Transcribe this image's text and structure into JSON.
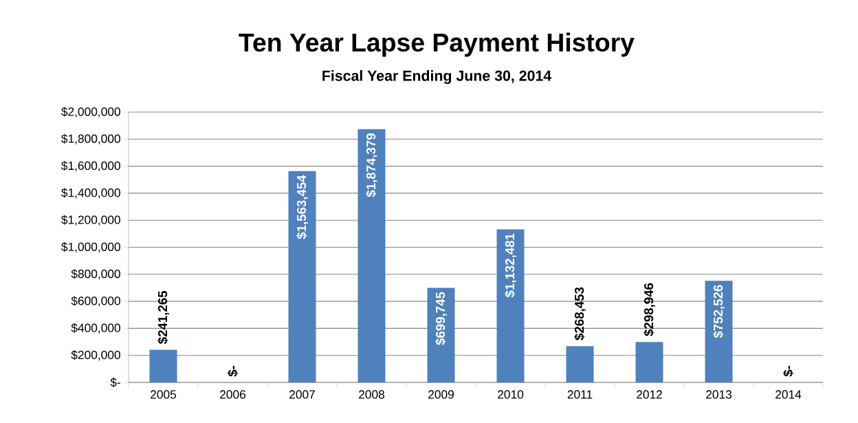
{
  "chart_data": {
    "type": "bar",
    "title": "Ten Year Lapse Payment History",
    "subtitle": "Fiscal Year Ending June 30, 2014",
    "categories": [
      "2005",
      "2006",
      "2007",
      "2008",
      "2009",
      "2010",
      "2011",
      "2012",
      "2013",
      "2014"
    ],
    "values": [
      241265,
      0,
      1563454,
      1874379,
      699745,
      1132481,
      268453,
      298946,
      752526,
      0
    ],
    "value_labels": [
      "$241,265",
      "$-",
      "$1,563,454",
      "$1,874,379",
      "$699,745",
      "$1,132,481",
      "$268,453",
      "$298,946",
      "$752,526",
      "$-"
    ],
    "color": "#4f81bd",
    "ylim": [
      0,
      2000000
    ],
    "yticks": [
      {
        "value": 0,
        "label": "$-"
      },
      {
        "value": 200000,
        "label": "$200,000"
      },
      {
        "value": 400000,
        "label": "$400,000"
      },
      {
        "value": 600000,
        "label": "$600,000"
      },
      {
        "value": 800000,
        "label": "$800,000"
      },
      {
        "value": 1000000,
        "label": "$1,000,000"
      },
      {
        "value": 1200000,
        "label": "$1,200,000"
      },
      {
        "value": 1400000,
        "label": "$1,400,000"
      },
      {
        "value": 1600000,
        "label": "$1,600,000"
      },
      {
        "value": 1800000,
        "label": "$1,800,000"
      },
      {
        "value": 2000000,
        "label": "$2,000,000"
      }
    ],
    "grid": "y"
  }
}
